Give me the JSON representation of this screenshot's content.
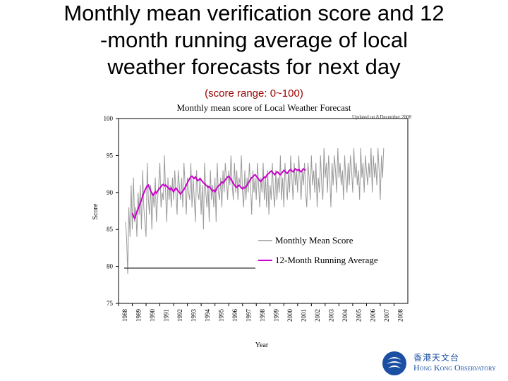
{
  "slide": {
    "title_lines": [
      "Monthly mean verification score and 12",
      "-month running average of local",
      "weather forecasts for next day"
    ],
    "subtitle": "(score range: 0~100)"
  },
  "chart_data": {
    "type": "line",
    "title": "Monthly mean score of Local Weather Forecast",
    "update_note": "Updated on 8 December 2008",
    "xlabel": "Year",
    "ylabel": "Score",
    "ylim": [
      75,
      100
    ],
    "yticks": [
      75,
      80,
      85,
      90,
      95,
      100
    ],
    "x_start": 1988,
    "x_end": 2009,
    "xticks": [
      "1988",
      "1989",
      "1990",
      "1991",
      "1992",
      "1993",
      "1994",
      "1995",
      "1996",
      "1997",
      "1998",
      "1999",
      "2000",
      "2001",
      "2002",
      "2003",
      "2004",
      "2005",
      "2006",
      "2007",
      "2008"
    ],
    "legend": [
      "Monthly Mean Score",
      "12-Month Running Average"
    ],
    "colors": {
      "monthly": "#9a9a9a",
      "running": "#cc00cc",
      "axis": "#000000"
    },
    "series": [
      {
        "name": "Monthly Mean Score",
        "start": 1988.5,
        "step": 0.0833333,
        "values": [
          86,
          84,
          79,
          88,
          84,
          91,
          85,
          92,
          86,
          88,
          84,
          90,
          87,
          91,
          85,
          93,
          88,
          86,
          84,
          94,
          89,
          87,
          91,
          85,
          90,
          88,
          92,
          86,
          89,
          91,
          94,
          88,
          90,
          89,
          95,
          90,
          86,
          92,
          89,
          91,
          88,
          92,
          89,
          93,
          90,
          87,
          93,
          91,
          89,
          92,
          88,
          94,
          91,
          87,
          92,
          90,
          89,
          94,
          88,
          92,
          89,
          86,
          93,
          90,
          89,
          92,
          87,
          91,
          85,
          94,
          90,
          88,
          91,
          86,
          93,
          89,
          91,
          88,
          92,
          86,
          94,
          90,
          89,
          92,
          88,
          93,
          90,
          94,
          92,
          89,
          93,
          91,
          95,
          91,
          89,
          94,
          90,
          93,
          89,
          92,
          91,
          95,
          90,
          88,
          93,
          89,
          92,
          90,
          94,
          91,
          87,
          93,
          90,
          92,
          89,
          94,
          91,
          88,
          92,
          90,
          94,
          89,
          92,
          88,
          93,
          87,
          91,
          89,
          94,
          90,
          88,
          93,
          89,
          92,
          90,
          95,
          89,
          92,
          88,
          94,
          91,
          89,
          93,
          90,
          95,
          92,
          89,
          94,
          91,
          93,
          90,
          95,
          92,
          89,
          93,
          91,
          94,
          90,
          88,
          94,
          92,
          89,
          95,
          91,
          93,
          90,
          94,
          88,
          92,
          90,
          95,
          91,
          89,
          96,
          92,
          94,
          90,
          95,
          92,
          88,
          94,
          91,
          95,
          93,
          90,
          96,
          92,
          94,
          91,
          93,
          89,
          95,
          92,
          90,
          94,
          91,
          95,
          93,
          90,
          96,
          92,
          94,
          91,
          93,
          89,
          96,
          92,
          94,
          90,
          95,
          93,
          91,
          94,
          92,
          96,
          90,
          95,
          92,
          94,
          91,
          96,
          93,
          89,
          95,
          92,
          96
        ]
      },
      {
        "name": "12-Month Running Average",
        "start": 1989.0,
        "step": 0.0833333,
        "values": [
          87.2,
          86.8,
          86.5,
          86.9,
          87.4,
          87.8,
          88.2,
          88.6,
          89.0,
          89.5,
          89.9,
          90.3,
          90.6,
          90.9,
          91.0,
          90.6,
          90.2,
          89.9,
          89.6,
          89.8,
          90.1,
          89.9,
          90.2,
          90.4,
          90.6,
          90.8,
          91.0,
          91.1,
          90.9,
          91.0,
          90.8,
          90.7,
          90.5,
          90.4,
          90.6,
          90.3,
          90.1,
          90.4,
          90.6,
          90.4,
          90.2,
          90.0,
          89.8,
          90.0,
          90.2,
          90.4,
          90.7,
          91.0,
          91.3,
          91.6,
          91.9,
          92.1,
          92.2,
          92.0,
          91.9,
          92.1,
          91.8,
          91.6,
          91.7,
          91.9,
          91.7,
          91.5,
          91.3,
          91.2,
          91.0,
          90.9,
          90.7,
          90.8,
          90.6,
          90.4,
          90.2,
          90.3,
          90.1,
          90.4,
          90.7,
          90.9,
          91.0,
          91.2,
          91.4,
          91.3,
          91.5,
          91.7,
          91.9,
          92.1,
          92.2,
          92.0,
          91.8,
          91.5,
          91.2,
          91.0,
          90.8,
          90.7,
          90.9,
          91.0,
          90.8,
          90.6,
          90.5,
          90.7,
          90.6,
          90.8,
          91.0,
          91.3,
          91.5,
          91.8,
          92.0,
          92.1,
          92.3,
          92.4,
          92.2,
          92.0,
          91.8,
          91.6,
          91.5,
          91.7,
          91.9,
          92.1,
          92.0,
          92.3,
          92.5,
          92.6,
          92.8,
          92.9,
          92.7,
          92.6,
          92.4,
          92.6,
          92.8,
          92.7,
          92.5,
          92.4,
          92.6,
          92.8,
          93.0,
          92.9,
          92.7,
          92.6,
          92.8,
          93.0,
          93.1,
          92.9,
          92.8,
          93.0,
          93.2,
          93.1,
          93.0,
          93.1,
          92.9,
          92.8,
          93.0,
          93.2,
          93.1,
          93.0
        ]
      }
    ]
  },
  "logo": {
    "name_zh": "香港天文台",
    "name_en": "Hong Kong Observatory"
  }
}
